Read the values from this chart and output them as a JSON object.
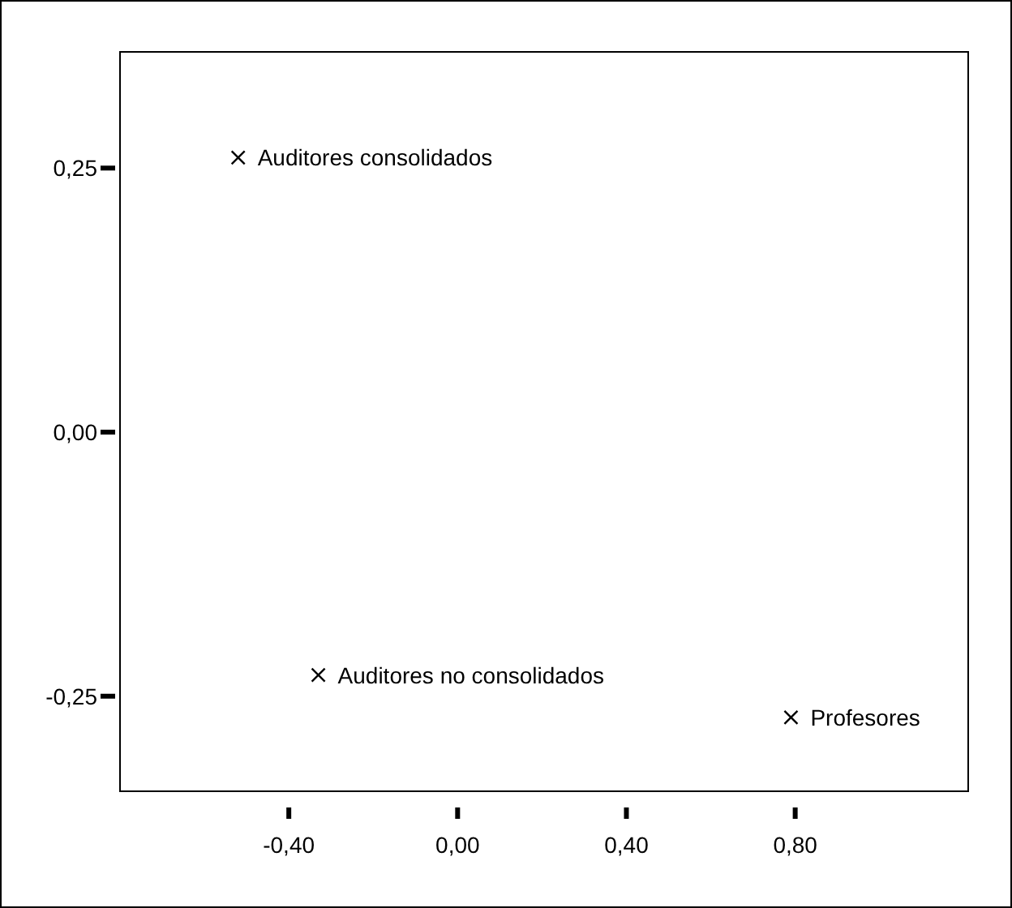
{
  "chart_data": {
    "type": "scatter",
    "marker": "cross",
    "grid": false,
    "xlim": [
      -0.8,
      1.21
    ],
    "ylim": [
      -0.34,
      0.36
    ],
    "xticks": [
      {
        "value": -0.4,
        "label": "-0,40"
      },
      {
        "value": 0,
        "label": "0,00"
      },
      {
        "value": 0.4,
        "label": "0,40"
      },
      {
        "value": 0.8,
        "label": "0,80"
      }
    ],
    "yticks": [
      {
        "value": -0.25,
        "label": "-0,25"
      },
      {
        "value": 0,
        "label": "0,00"
      },
      {
        "value": 0.25,
        "label": "0,25"
      }
    ],
    "series": [
      {
        "name": "Auditores consolidados",
        "color": "#000000",
        "x": [
          -0.52
        ],
        "values": [
          0.26
        ]
      },
      {
        "name": "Auditores no consolidados",
        "color": "#000000",
        "x": [
          -0.33
        ],
        "values": [
          -0.23
        ]
      },
      {
        "name": "Profesores",
        "color": "#000000",
        "x": [
          0.79
        ],
        "values": [
          -0.27
        ]
      }
    ]
  }
}
